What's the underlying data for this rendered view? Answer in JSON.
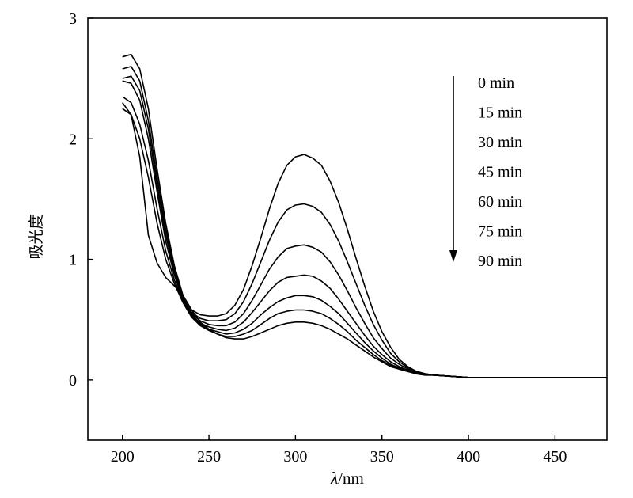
{
  "chart_data": {
    "type": "line",
    "xlabel_italic": "λ",
    "xlabel_rest": "/nm",
    "ylabel": "吸光度",
    "xlim": [
      180,
      480
    ],
    "ylim": [
      -0.5,
      3
    ],
    "x_ticks": [
      200,
      250,
      300,
      350,
      400,
      450
    ],
    "y_ticks": [
      0,
      1,
      2,
      3
    ],
    "grid": false,
    "legend_position": "top-right",
    "legend_arrow_direction": "down",
    "x": [
      200,
      205,
      210,
      215,
      220,
      225,
      230,
      235,
      240,
      245,
      250,
      255,
      260,
      265,
      270,
      275,
      280,
      285,
      290,
      295,
      300,
      305,
      310,
      315,
      320,
      325,
      330,
      335,
      340,
      345,
      350,
      355,
      360,
      365,
      370,
      375,
      380,
      390,
      400,
      420,
      450,
      480
    ],
    "series": [
      {
        "name": "0 min",
        "values": [
          2.68,
          2.7,
          2.58,
          2.25,
          1.75,
          1.3,
          0.95,
          0.7,
          0.58,
          0.54,
          0.53,
          0.53,
          0.55,
          0.62,
          0.75,
          0.95,
          1.18,
          1.42,
          1.63,
          1.78,
          1.85,
          1.87,
          1.84,
          1.78,
          1.65,
          1.47,
          1.25,
          1.01,
          0.78,
          0.57,
          0.4,
          0.27,
          0.17,
          0.11,
          0.07,
          0.05,
          0.04,
          0.03,
          0.02,
          0.02,
          0.02,
          0.02
        ]
      },
      {
        "name": "15 min",
        "values": [
          2.58,
          2.6,
          2.48,
          2.15,
          1.68,
          1.25,
          0.92,
          0.68,
          0.56,
          0.51,
          0.49,
          0.49,
          0.5,
          0.55,
          0.65,
          0.8,
          0.98,
          1.16,
          1.31,
          1.41,
          1.45,
          1.46,
          1.44,
          1.39,
          1.29,
          1.15,
          0.98,
          0.8,
          0.62,
          0.46,
          0.33,
          0.22,
          0.15,
          0.1,
          0.07,
          0.05,
          0.04,
          0.03,
          0.02,
          0.02,
          0.02,
          0.02
        ]
      },
      {
        "name": "30 min",
        "values": [
          2.5,
          2.52,
          2.4,
          2.08,
          1.62,
          1.2,
          0.9,
          0.67,
          0.55,
          0.49,
          0.46,
          0.45,
          0.45,
          0.48,
          0.55,
          0.66,
          0.79,
          0.92,
          1.02,
          1.09,
          1.11,
          1.12,
          1.1,
          1.06,
          0.98,
          0.87,
          0.74,
          0.6,
          0.47,
          0.35,
          0.26,
          0.18,
          0.13,
          0.09,
          0.06,
          0.05,
          0.04,
          0.03,
          0.02,
          0.02,
          0.02,
          0.02
        ]
      },
      {
        "name": "45 min",
        "values": [
          2.48,
          2.46,
          2.32,
          2.0,
          1.56,
          1.15,
          0.87,
          0.66,
          0.54,
          0.47,
          0.44,
          0.42,
          0.41,
          0.43,
          0.48,
          0.56,
          0.65,
          0.74,
          0.81,
          0.85,
          0.86,
          0.87,
          0.86,
          0.82,
          0.76,
          0.67,
          0.57,
          0.47,
          0.37,
          0.28,
          0.21,
          0.15,
          0.11,
          0.08,
          0.06,
          0.05,
          0.04,
          0.03,
          0.02,
          0.02,
          0.02,
          0.02
        ]
      },
      {
        "name": "60 min",
        "values": [
          2.35,
          2.3,
          2.12,
          1.82,
          1.42,
          1.07,
          0.83,
          0.65,
          0.53,
          0.46,
          0.42,
          0.4,
          0.38,
          0.39,
          0.42,
          0.47,
          0.54,
          0.6,
          0.65,
          0.68,
          0.7,
          0.7,
          0.69,
          0.66,
          0.61,
          0.55,
          0.47,
          0.39,
          0.31,
          0.24,
          0.18,
          0.13,
          0.1,
          0.07,
          0.06,
          0.05,
          0.04,
          0.03,
          0.02,
          0.02,
          0.02,
          0.02
        ]
      },
      {
        "name": "75 min",
        "values": [
          2.25,
          2.2,
          2.0,
          1.68,
          1.3,
          1.0,
          0.8,
          0.64,
          0.52,
          0.45,
          0.41,
          0.38,
          0.36,
          0.36,
          0.38,
          0.41,
          0.46,
          0.51,
          0.55,
          0.57,
          0.58,
          0.58,
          0.57,
          0.55,
          0.51,
          0.46,
          0.4,
          0.33,
          0.27,
          0.21,
          0.16,
          0.12,
          0.09,
          0.07,
          0.05,
          0.04,
          0.04,
          0.03,
          0.02,
          0.02,
          0.02,
          0.02
        ]
      },
      {
        "name": "90 min",
        "values": [
          2.3,
          2.2,
          1.85,
          1.2,
          0.97,
          0.85,
          0.78,
          0.7,
          0.58,
          0.48,
          0.42,
          0.38,
          0.35,
          0.34,
          0.34,
          0.36,
          0.39,
          0.42,
          0.45,
          0.47,
          0.48,
          0.48,
          0.47,
          0.45,
          0.42,
          0.38,
          0.34,
          0.29,
          0.24,
          0.19,
          0.15,
          0.11,
          0.09,
          0.07,
          0.05,
          0.04,
          0.04,
          0.03,
          0.02,
          0.02,
          0.02,
          0.02
        ]
      }
    ]
  }
}
